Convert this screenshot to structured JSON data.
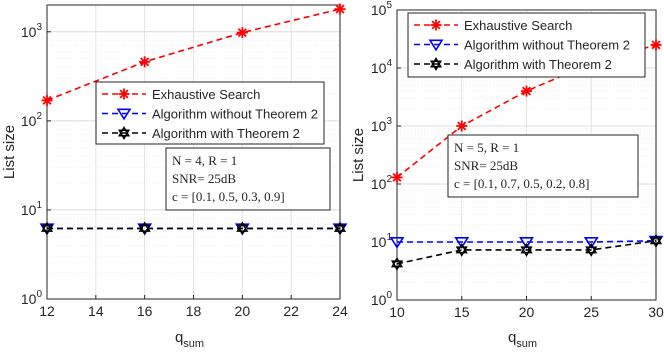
{
  "chart_data": [
    {
      "type": "line",
      "y_scale": "log",
      "xlabel": "q",
      "xlabel_sub": "sum",
      "ylabel": "List size",
      "xlim": [
        12,
        24
      ],
      "ylim": [
        1,
        2000
      ],
      "x": [
        12,
        16,
        20,
        24
      ],
      "xticks": [
        "12",
        "14",
        "16",
        "18",
        "20",
        "22",
        "24"
      ],
      "yticks": [
        {
          "base": "10",
          "exp": "0"
        },
        {
          "base": "10",
          "exp": "1"
        },
        {
          "base": "10",
          "exp": "2"
        },
        {
          "base": "10",
          "exp": "3"
        }
      ],
      "grid": true,
      "legend_position": "upper-right",
      "series": [
        {
          "name": "Exhaustive Search",
          "color": "#ff0000",
          "dash": "dashed",
          "marker": "asterisk",
          "values": [
            170,
            460,
            980,
            1800
          ]
        },
        {
          "name": "Algorithm without Theorem 2",
          "color": "#0000ff",
          "dash": "dashed",
          "marker": "triangle-down",
          "values": [
            6.2,
            6.2,
            6.2,
            6.2
          ]
        },
        {
          "name": "Algorithm with Theorem 2",
          "color": "#000000",
          "dash": "dashed",
          "marker": "hexagram",
          "values": [
            6.2,
            6.2,
            6.2,
            6.2
          ]
        }
      ],
      "annotation": [
        "N = 4, R = 1",
        "SNR= 25dB",
        "c = [0.1, 0.5, 0.3, 0.9]"
      ]
    },
    {
      "type": "line",
      "y_scale": "log",
      "xlabel": "q",
      "xlabel_sub": "sum",
      "ylabel": "List size",
      "xlim": [
        10,
        30
      ],
      "ylim": [
        1,
        100000
      ],
      "x": [
        10,
        15,
        20,
        25,
        30
      ],
      "xticks": [
        "10",
        "15",
        "20",
        "25",
        "30"
      ],
      "yticks": [
        {
          "base": "10",
          "exp": "0"
        },
        {
          "base": "10",
          "exp": "1"
        },
        {
          "base": "10",
          "exp": "2"
        },
        {
          "base": "10",
          "exp": "3"
        },
        {
          "base": "10",
          "exp": "4"
        },
        {
          "base": "10",
          "exp": "5"
        }
      ],
      "grid": true,
      "legend_position": "top",
      "series": [
        {
          "name": "Exhaustive Search",
          "color": "#ff0000",
          "dash": "dashed",
          "marker": "asterisk",
          "values": [
            130,
            1000,
            4000,
            12000,
            25000
          ]
        },
        {
          "name": "Algorithm without Theorem 2",
          "color": "#0000ff",
          "dash": "dashed",
          "marker": "triangle-down",
          "values": [
            10,
            10,
            10,
            10,
            10.5
          ]
        },
        {
          "name": "Algorithm with Theorem 2",
          "color": "#000000",
          "dash": "dashed",
          "marker": "hexagram",
          "values": [
            4.2,
            7.3,
            7.3,
            7.3,
            10.5
          ]
        }
      ],
      "annotation": [
        "N = 5, R = 1",
        "SNR= 25dB",
        "c = [0.1, 0.7, 0.5, 0.2, 0.8]"
      ]
    }
  ]
}
